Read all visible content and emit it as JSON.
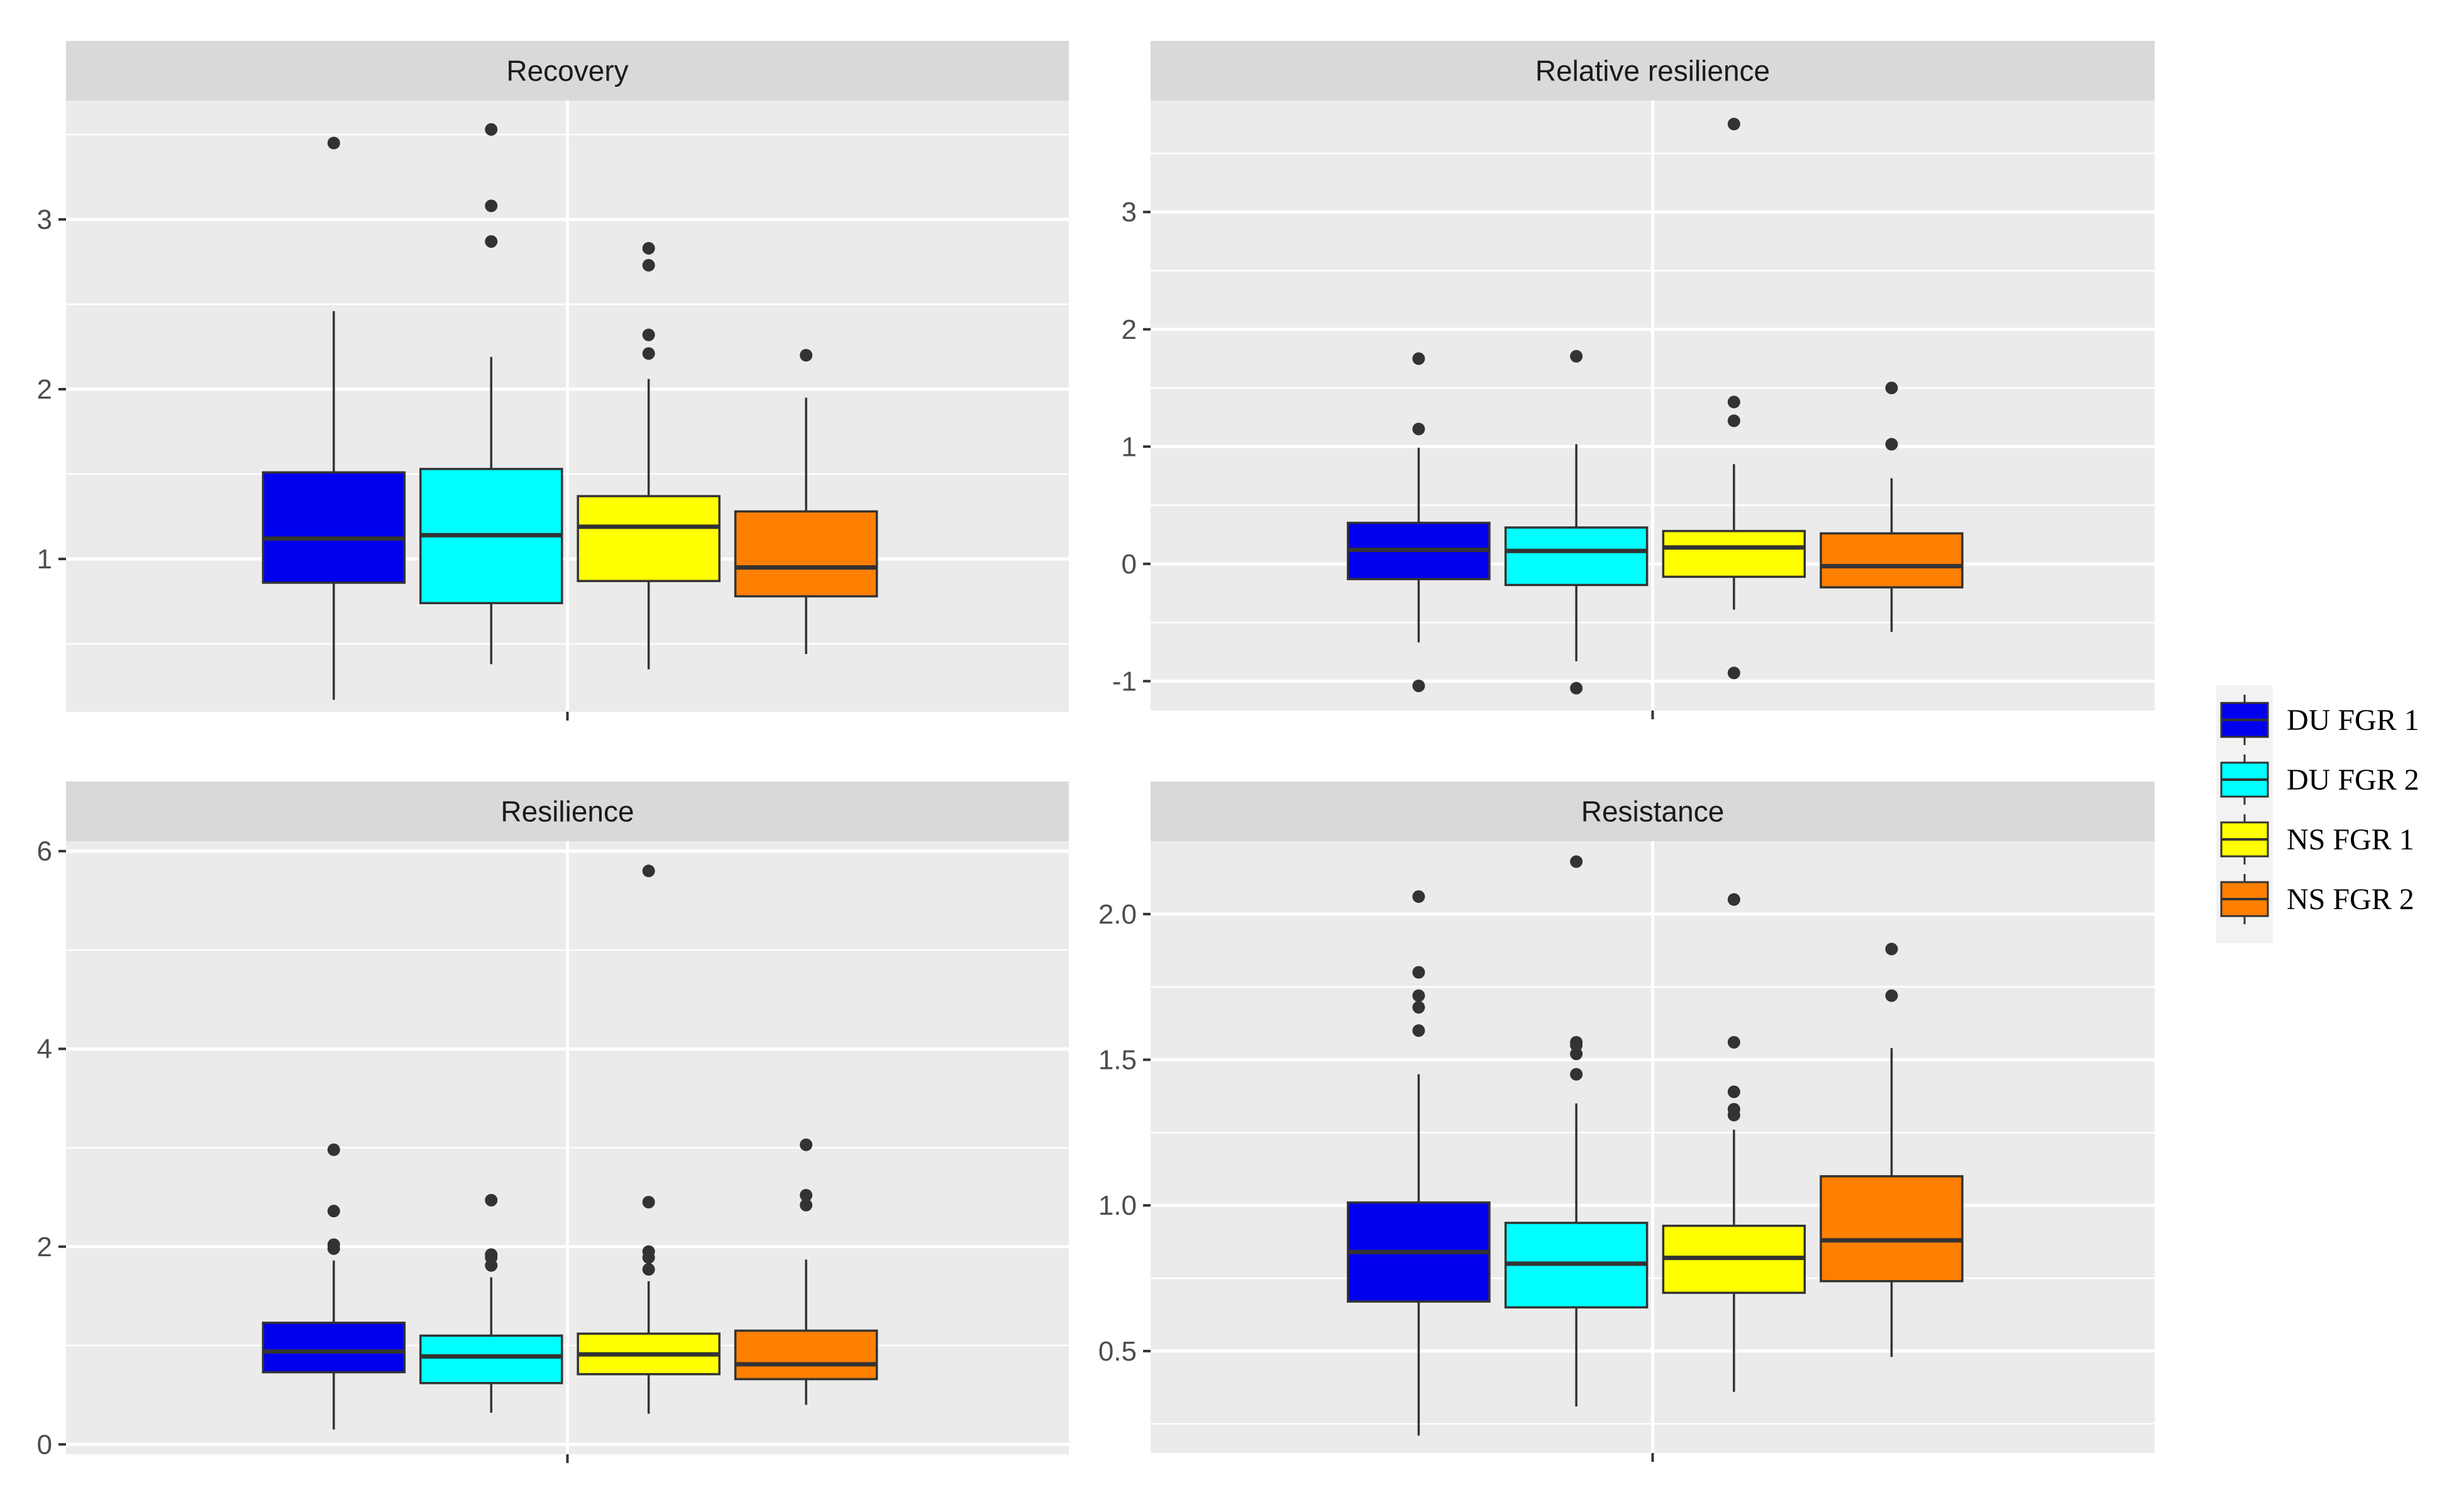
{
  "colors": {
    "panel_bg": "#EBEBEB",
    "strip_bg": "#D9D9D9",
    "grid": "#FFFFFF",
    "box_outline": "#333333",
    "tick_text": "#4D4D4D",
    "strip_text": "#1A1A1A"
  },
  "legend": {
    "entries": [
      {
        "label": "DU FGR 1",
        "color": "#0000EE"
      },
      {
        "label": "DU FGR 2",
        "color": "#00FFFF"
      },
      {
        "label": "NS FGR 1",
        "color": "#FFFF00"
      },
      {
        "label": "NS FGR 2",
        "color": "#FF7F00"
      }
    ]
  },
  "chart_data": [
    {
      "type": "box",
      "title": "Recovery",
      "xlabel": "",
      "ylabel": "",
      "ylim": [
        0.1,
        3.7
      ],
      "yticks": [
        1,
        2,
        3
      ],
      "ytick_labels": [
        "1",
        "2",
        "3"
      ],
      "grid": true,
      "series": [
        {
          "name": "DU FGR 1",
          "whisker_low": 0.17,
          "q1": 0.86,
          "median": 1.12,
          "q3": 1.51,
          "whisker_high": 2.46,
          "outliers": [
            3.45
          ]
        },
        {
          "name": "DU FGR 2",
          "whisker_low": 0.38,
          "q1": 0.74,
          "median": 1.14,
          "q3": 1.53,
          "whisker_high": 2.19,
          "outliers": [
            2.87,
            3.08,
            3.53
          ]
        },
        {
          "name": "NS FGR 1",
          "whisker_low": 0.35,
          "q1": 0.87,
          "median": 1.19,
          "q3": 1.37,
          "whisker_high": 2.06,
          "outliers": [
            2.21,
            2.32,
            2.73,
            2.83
          ]
        },
        {
          "name": "NS FGR 2",
          "whisker_low": 0.44,
          "q1": 0.78,
          "median": 0.95,
          "q3": 1.28,
          "whisker_high": 1.95,
          "outliers": [
            2.2
          ]
        }
      ]
    },
    {
      "type": "box",
      "title": "Relative resilience",
      "xlabel": "",
      "ylabel": "",
      "ylim": [
        -1.25,
        3.95
      ],
      "yticks": [
        -1,
        0,
        1,
        2,
        3
      ],
      "ytick_labels": [
        "-1",
        "0",
        "1",
        "2",
        "3"
      ],
      "grid": true,
      "series": [
        {
          "name": "DU FGR 1",
          "whisker_low": -0.67,
          "q1": -0.13,
          "median": 0.12,
          "q3": 0.35,
          "whisker_high": 0.99,
          "outliers": [
            -1.04,
            1.15,
            1.75
          ]
        },
        {
          "name": "DU FGR 2",
          "whisker_low": -0.83,
          "q1": -0.18,
          "median": 0.11,
          "q3": 0.31,
          "whisker_high": 1.02,
          "outliers": [
            -1.06,
            1.77
          ]
        },
        {
          "name": "NS FGR 1",
          "whisker_low": -0.39,
          "q1": -0.11,
          "median": 0.14,
          "q3": 0.28,
          "whisker_high": 0.85,
          "outliers": [
            -0.93,
            1.22,
            1.38,
            3.75
          ]
        },
        {
          "name": "NS FGR 2",
          "whisker_low": -0.58,
          "q1": -0.2,
          "median": -0.02,
          "q3": 0.26,
          "whisker_high": 0.73,
          "outliers": [
            1.02,
            1.5
          ]
        }
      ]
    },
    {
      "type": "box",
      "title": "Resilience",
      "xlabel": "",
      "ylabel": "",
      "ylim": [
        -0.1,
        6.1
      ],
      "yticks": [
        0,
        2,
        4,
        6
      ],
      "ytick_labels": [
        "0",
        "2",
        "4",
        "6"
      ],
      "grid": true,
      "series": [
        {
          "name": "DU FGR 1",
          "whisker_low": 0.15,
          "q1": 0.73,
          "median": 0.94,
          "q3": 1.23,
          "whisker_high": 1.86,
          "outliers": [
            1.98,
            2.02,
            2.36,
            2.98
          ]
        },
        {
          "name": "DU FGR 2",
          "whisker_low": 0.32,
          "q1": 0.62,
          "median": 0.89,
          "q3": 1.1,
          "whisker_high": 1.69,
          "outliers": [
            1.81,
            1.89,
            1.92,
            2.47
          ]
        },
        {
          "name": "NS FGR 1",
          "whisker_low": 0.31,
          "q1": 0.71,
          "median": 0.91,
          "q3": 1.12,
          "whisker_high": 1.65,
          "outliers": [
            1.77,
            1.89,
            1.95,
            2.45,
            5.8
          ]
        },
        {
          "name": "NS FGR 2",
          "whisker_low": 0.4,
          "q1": 0.66,
          "median": 0.81,
          "q3": 1.15,
          "whisker_high": 1.87,
          "outliers": [
            2.42,
            2.52,
            3.03
          ]
        }
      ]
    },
    {
      "type": "box",
      "title": "Resistance",
      "xlabel": "",
      "ylabel": "",
      "ylim": [
        0.15,
        2.25
      ],
      "yticks": [
        0.5,
        1.0,
        1.5,
        2.0
      ],
      "ytick_labels": [
        "0.5",
        "1.0",
        "1.5",
        "2.0"
      ],
      "grid": true,
      "series": [
        {
          "name": "DU FGR 1",
          "whisker_low": 0.21,
          "q1": 0.67,
          "median": 0.84,
          "q3": 1.01,
          "whisker_high": 1.45,
          "outliers": [
            1.6,
            1.68,
            1.72,
            1.8,
            2.06
          ]
        },
        {
          "name": "DU FGR 2",
          "whisker_low": 0.31,
          "q1": 0.65,
          "median": 0.8,
          "q3": 0.94,
          "whisker_high": 1.35,
          "outliers": [
            1.45,
            1.52,
            1.55,
            1.56,
            2.18
          ]
        },
        {
          "name": "NS FGR 1",
          "whisker_low": 0.36,
          "q1": 0.7,
          "median": 0.82,
          "q3": 0.93,
          "whisker_high": 1.26,
          "outliers": [
            1.31,
            1.33,
            1.39,
            1.56,
            2.05
          ]
        },
        {
          "name": "NS FGR 2",
          "whisker_low": 0.48,
          "q1": 0.74,
          "median": 0.88,
          "q3": 1.1,
          "whisker_high": 1.54,
          "outliers": [
            1.72,
            1.88
          ]
        }
      ]
    }
  ]
}
